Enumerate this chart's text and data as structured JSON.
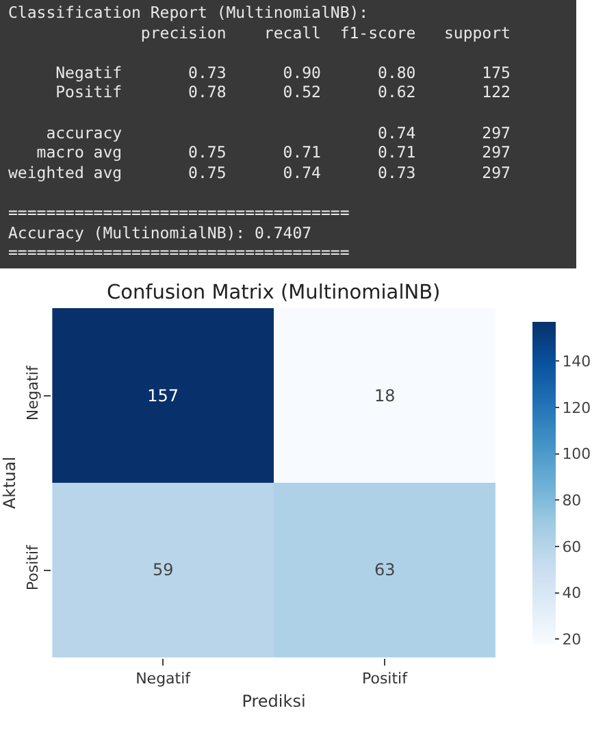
{
  "chart_data": [
    {
      "type": "other",
      "title": "Classification Report (MultinomialNB):",
      "annotations": [
        "              precision    recall  f1-score   support",
        "     Negatif       0.73      0.90      0.80       175",
        "     Positif       0.78      0.52      0.62       122",
        "    accuracy                           0.74       297",
        "   macro avg       0.75      0.71      0.71       297",
        "weighted avg       0.75      0.74      0.73       297",
        "====================================",
        "Accuracy (MultinomialNB): 0.7407",
        "===================================="
      ]
    },
    {
      "type": "heatmap",
      "title": "Confusion Matrix (MultinomialNB)",
      "xlabel": "Prediksi",
      "ylabel": "Aktual",
      "categories": [
        "Negatif",
        "Positif"
      ],
      "y_categories": [
        "Negatif",
        "Positif"
      ],
      "cells": [
        [
          157,
          18
        ],
        [
          59,
          63
        ]
      ],
      "data_labels": true,
      "clim": [
        18,
        157
      ],
      "cticks": [
        20,
        40,
        60,
        80,
        100,
        120,
        140
      ]
    }
  ]
}
